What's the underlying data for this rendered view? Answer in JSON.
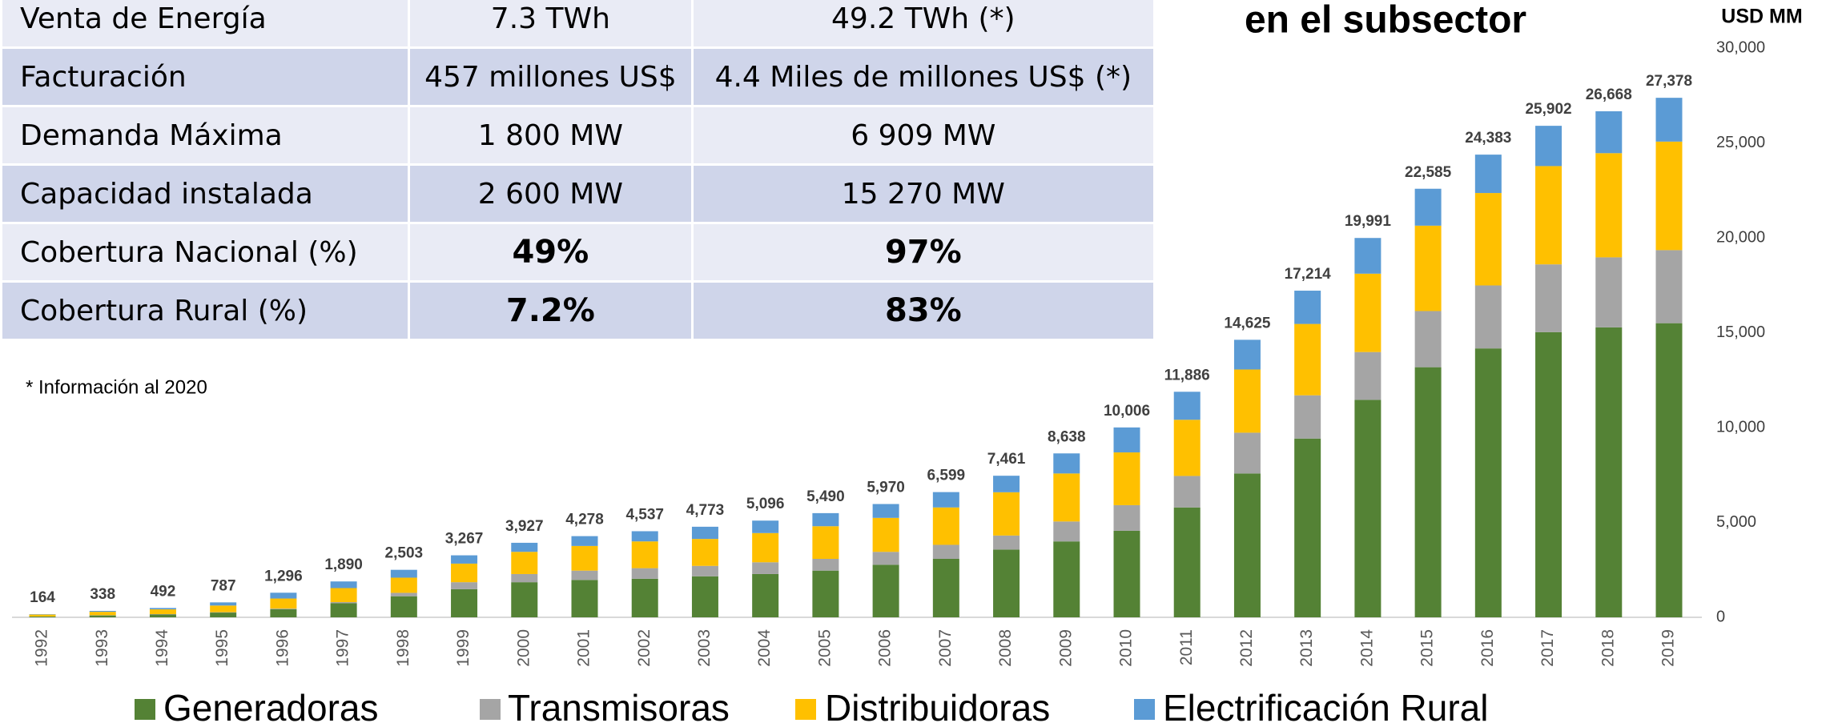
{
  "table": {
    "rows": [
      [
        "Venta de Energía",
        "7.3 TWh",
        "49.2 TWh (*)"
      ],
      [
        "Facturación",
        "457 millones US$",
        "4.4 Miles de millones US$ (*)"
      ],
      [
        "Demanda Máxima",
        "1 800 MW",
        "6 909 MW"
      ],
      [
        "Capacidad instalada",
        "2 600 MW",
        "15 270 MW"
      ],
      [
        "Cobertura Nacional (%)",
        "49%",
        "97%"
      ],
      [
        "Cobertura Rural (%)",
        "7.2%",
        "83%"
      ]
    ],
    "note": "* Información al 2020"
  },
  "chart_data": {
    "type": "stacked_bar",
    "title": "en el subsector",
    "y_axis_label": "USD MM",
    "categories": [
      "1992",
      "1993",
      "1994",
      "1995",
      "1996",
      "1997",
      "1998",
      "1999",
      "2000",
      "2001",
      "2002",
      "2003",
      "2004",
      "2005",
      "2006",
      "2007",
      "2008",
      "2009",
      "2010",
      "2011",
      "2012",
      "2013",
      "2014",
      "2015",
      "2016",
      "2017",
      "2018",
      "2019"
    ],
    "series": [
      {
        "name": "Generadoras",
        "color": "#548235",
        "values": [
          40,
          100,
          150,
          250,
          430,
          740,
          1110,
          1480,
          1850,
          1970,
          2030,
          2160,
          2280,
          2460,
          2770,
          3080,
          3570,
          4000,
          4560,
          5790,
          7580,
          9420,
          11460,
          13180,
          14170,
          15030,
          15280,
          15500
        ]
      },
      {
        "name": "Transmisoras",
        "color": "#a5a5a5",
        "values": [
          5,
          10,
          20,
          20,
          30,
          60,
          180,
          370,
          430,
          490,
          560,
          550,
          620,
          620,
          680,
          740,
          740,
          1050,
          1350,
          1660,
          2150,
          2280,
          2520,
          2960,
          3320,
          3570,
          3690,
          3850
        ]
      },
      {
        "name": "Distribuidoras",
        "color": "#ffc000",
        "values": [
          100,
          180,
          250,
          350,
          530,
          740,
          800,
          980,
          1170,
          1300,
          1410,
          1420,
          1540,
          1720,
          1790,
          1970,
          2280,
          2530,
          2780,
          2960,
          3330,
          3760,
          4130,
          4500,
          4870,
          5180,
          5490,
          5720
        ]
      },
      {
        "name": "Electrificación Rural",
        "color": "#5b9bd5",
        "values": [
          19,
          48,
          72,
          167,
          306,
          350,
          413,
          437,
          477,
          518,
          537,
          643,
          656,
          690,
          730,
          809,
          871,
          1058,
          1316,
          1476,
          1565,
          1754,
          1881,
          1945,
          2023,
          2122,
          2208,
          2308
        ]
      }
    ],
    "totals": [
      164,
      338,
      492,
      787,
      1296,
      1890,
      2503,
      3267,
      3927,
      4278,
      4537,
      4773,
      5096,
      5490,
      5970,
      6599,
      7461,
      8638,
      10006,
      11886,
      14625,
      17214,
      19991,
      22585,
      24383,
      25902,
      26668,
      27378
    ],
    "total_labels": [
      "164",
      "338",
      "492",
      "787",
      "1,296",
      "1,890",
      "2,503",
      "3,267",
      "3,927",
      "4,278",
      "4,537",
      "4,773",
      "5,096",
      "5,490",
      "5,970",
      "6,599",
      "7,461",
      "8,638",
      "10,006",
      "11,886",
      "14,625",
      "17,214",
      "19,991",
      "22,585",
      "24,383",
      "25,902",
      "26,668",
      "27,378"
    ],
    "ylim": [
      0,
      30000
    ],
    "yticks": [
      0,
      {
        "value": 5000,
        "label": "5,000"
      },
      {
        "value": 10000,
        "label": "10,000"
      },
      {
        "value": 15000,
        "label": "15,000"
      },
      {
        "value": 20000,
        "label": "20,000"
      },
      {
        "value": 25000,
        "label": "25,000"
      },
      {
        "value": 30000,
        "label": "30,000"
      }
    ],
    "grid": false,
    "legend": "bottom"
  }
}
